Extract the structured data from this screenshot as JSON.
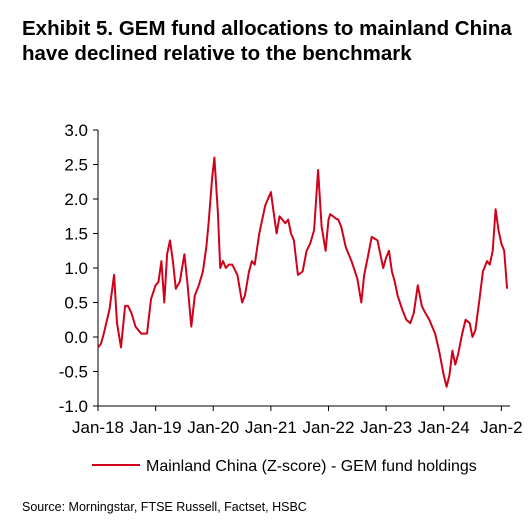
{
  "title": "Exhibit 5. GEM fund allocations to mainland China have declined relative to the benchmark",
  "source": "Source: Morningstar, FTSE Russell, Factset, HSBC",
  "chart_data": {
    "type": "line",
    "title": "Exhibit 5. GEM fund allocations to mainland China have declined relative to the benchmark",
    "xlabel": "",
    "ylabel": "",
    "ylim": [
      -1.0,
      3.0
    ],
    "yticks": [
      "3.0",
      "2.5",
      "2.0",
      "1.5",
      "1.0",
      "0.5",
      "0.0",
      "-0.5",
      "-1.0"
    ],
    "xticks": [
      "Jan-18",
      "Jan-19",
      "Jan-20",
      "Jan-21",
      "Jan-22",
      "Jan-23",
      "Jan-24",
      "Jan-2"
    ],
    "grid": false,
    "legend_position": "bottom",
    "series": [
      {
        "name": "Mainland China (Z-score) - GEM fund holdings",
        "color": "#d0021b",
        "x": [
          2018.0,
          2018.05,
          2018.1,
          2018.2,
          2018.28,
          2018.33,
          2018.4,
          2018.47,
          2018.52,
          2018.58,
          2018.65,
          2018.75,
          2018.85,
          2018.92,
          2019.0,
          2019.05,
          2019.1,
          2019.15,
          2019.2,
          2019.25,
          2019.3,
          2019.35,
          2019.42,
          2019.5,
          2019.55,
          2019.62,
          2019.68,
          2019.75,
          2019.82,
          2019.88,
          2019.92,
          2019.98,
          2020.02,
          2020.08,
          2020.12,
          2020.17,
          2020.22,
          2020.27,
          2020.33,
          2020.42,
          2020.5,
          2020.55,
          2020.62,
          2020.67,
          2020.72,
          2020.8,
          2020.9,
          2021.0,
          2021.05,
          2021.1,
          2021.15,
          2021.2,
          2021.25,
          2021.3,
          2021.35,
          2021.4,
          2021.47,
          2021.55,
          2021.62,
          2021.68,
          2021.75,
          2021.82,
          2021.88,
          2021.95,
          2022.0,
          2022.03,
          2022.08,
          2022.12,
          2022.17,
          2022.22,
          2022.3,
          2022.4,
          2022.5,
          2022.57,
          2022.62,
          2022.68,
          2022.75,
          2022.85,
          2022.95,
          2023.0,
          2023.05,
          2023.1,
          2023.15,
          2023.2,
          2023.28,
          2023.35,
          2023.42,
          2023.48,
          2023.55,
          2023.62,
          2023.68,
          2023.75,
          2023.85,
          2023.92,
          2024.0,
          2024.05,
          2024.1,
          2024.15,
          2024.2,
          2024.25,
          2024.32,
          2024.38,
          2024.45,
          2024.5,
          2024.55,
          2024.62,
          2024.68,
          2024.75,
          2024.8,
          2024.85,
          2024.9,
          2024.95,
          2025.0,
          2025.05,
          2025.1
        ],
        "values": [
          -0.15,
          -0.1,
          0.05,
          0.4,
          0.9,
          0.2,
          -0.15,
          0.45,
          0.45,
          0.35,
          0.15,
          0.05,
          0.05,
          0.55,
          0.75,
          0.8,
          1.1,
          0.5,
          1.2,
          1.4,
          1.1,
          0.7,
          0.8,
          1.2,
          0.8,
          0.15,
          0.6,
          0.75,
          0.95,
          1.3,
          1.65,
          2.3,
          2.6,
          1.8,
          1.0,
          1.1,
          1.0,
          1.05,
          1.05,
          0.9,
          0.5,
          0.6,
          0.95,
          1.1,
          1.05,
          1.5,
          1.9,
          2.1,
          1.8,
          1.5,
          1.75,
          1.7,
          1.65,
          1.7,
          1.5,
          1.4,
          0.9,
          0.95,
          1.25,
          1.35,
          1.55,
          2.42,
          1.6,
          1.25,
          1.7,
          1.78,
          1.75,
          1.72,
          1.7,
          1.6,
          1.3,
          1.1,
          0.85,
          0.5,
          0.9,
          1.15,
          1.45,
          1.4,
          1.0,
          1.15,
          1.25,
          0.95,
          0.8,
          0.6,
          0.4,
          0.25,
          0.2,
          0.35,
          0.75,
          0.45,
          0.35,
          0.25,
          0.05,
          -0.2,
          -0.55,
          -0.72,
          -0.55,
          -0.2,
          -0.4,
          -0.25,
          0.05,
          0.25,
          0.2,
          0.0,
          0.1,
          0.55,
          0.95,
          1.1,
          1.05,
          1.25,
          1.85,
          1.55,
          1.35,
          1.25,
          0.7
        ]
      }
    ]
  }
}
